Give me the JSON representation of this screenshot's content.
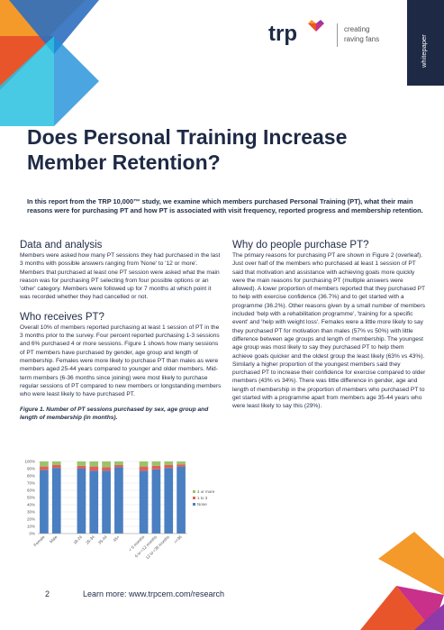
{
  "header": {
    "logo": "trp",
    "tagline_1": "creating",
    "tagline_2": "raving fans",
    "tab": "whitepaper"
  },
  "title": "Does Personal Training Increase Member Retention?",
  "intro": "In this report from the TRP 10,000™ study, we examine which members purchased Personal Training (PT), what their main reasons were for purchasing PT and how PT is associated with visit frequency, reported progress and membership retention.",
  "sections": [
    {
      "heading": "Data and analysis",
      "text": "Members were asked how many PT sessions they had purchased in the last 3 months with possible answers ranging from 'None' to '12 or more'. Members that purchased at least one PT session were asked what the main reason was for purchasing PT selecting from four possible options or an 'other' category. Members were followed up for 7 months at which point it was recorded whether they had cancelled or not."
    },
    {
      "heading": "Who receives PT?",
      "text": "Overall 10% of members reported purchasing at least 1 session of PT in the 3 months prior to the survey. Four percent reported purchasing 1-3 sessions and 6% purchased 4 or more sessions. Figure 1 shows how many sessions of PT members have purchased by gender, age group and length of membership. Females were more likely to purchase PT than males as were members aged 25-44 years compared to younger and older members. Mid-term members (6-36 months since joining) were most likely to purchase regular sessions of PT compared to new members or longstanding members who were least likely to have purchased PT."
    },
    {
      "heading": "Why do people purchase PT?",
      "text": "The primary reasons for purchasing PT are shown in Figure 2 (overleaf). Just over half of the members who purchased at least 1 session of PT said that motivation and assistance with achieving goals more quickly were the main reasons for purchasing PT (multiple answers were allowed). A lower proportion of members reported that they purchased PT to help with exercise confidence (36.7%) and to get started with a programme (36.2%). Other reasons given by a small number of members included 'help with a rehabilitation programme', 'training for a specific event' and 'help with weight loss'. Females were a little more likely to say they purchased PT for motivation than males (57% vs 50%) with little difference between age groups and length of membership. The youngest age group was most likely to say they purchased PT to help them achieve goals quicker and the oldest group the least likely (63% vs 43%). Similarly a higher proportion of the youngest members said they purchased PT to increase their confidence for exercise compared to older members (43% vs 34%). There was little difference in gender, age and length of membership in the proportion of members who purchased PT to get started with a programme apart from members age 35-44 years who were least likely to say this (29%)."
    }
  ],
  "figure_caption": "Figure 1. Number of PT sessions purchased by sex, age group and length of membership (in months).",
  "chart_data": {
    "type": "bar",
    "stacked": true,
    "categories": [
      "Female",
      "Male",
      "18-24",
      "25-34",
      "35-44",
      "45+",
      "< 6 months",
      "6 to <12 months",
      "12 to <36 months",
      ">=36"
    ],
    "series": [
      {
        "name": "None",
        "color": "#4a7fc1",
        "values": [
          88,
          91,
          90,
          87,
          87,
          92,
          87,
          89,
          91,
          93
        ]
      },
      {
        "name": "1 to 3",
        "color": "#e0605a",
        "values": [
          5,
          4,
          4,
          6,
          5,
          3,
          6,
          5,
          4,
          3
        ]
      },
      {
        "name": "4 or more",
        "color": "#9bc46a",
        "values": [
          7,
          5,
          6,
          7,
          8,
          5,
          7,
          6,
          5,
          4
        ]
      }
    ],
    "ylim": [
      0,
      100
    ],
    "yticks": [
      {
        "value": 0,
        "label": "0%"
      },
      {
        "value": 10,
        "label": "10%"
      },
      {
        "value": 20,
        "label": "20%"
      },
      {
        "value": 30,
        "label": "30%"
      },
      {
        "value": 40,
        "label": "40%"
      },
      {
        "value": 50,
        "label": "50%"
      },
      {
        "value": 60,
        "label": "60%"
      },
      {
        "value": 70,
        "label": "70%"
      },
      {
        "value": 80,
        "label": "80%"
      },
      {
        "value": 90,
        "label": "90%"
      },
      {
        "value": 100,
        "label": "100%"
      }
    ],
    "grid": true
  },
  "footer": {
    "page": "2",
    "link": "Learn more: www.trpcem.com/research"
  }
}
